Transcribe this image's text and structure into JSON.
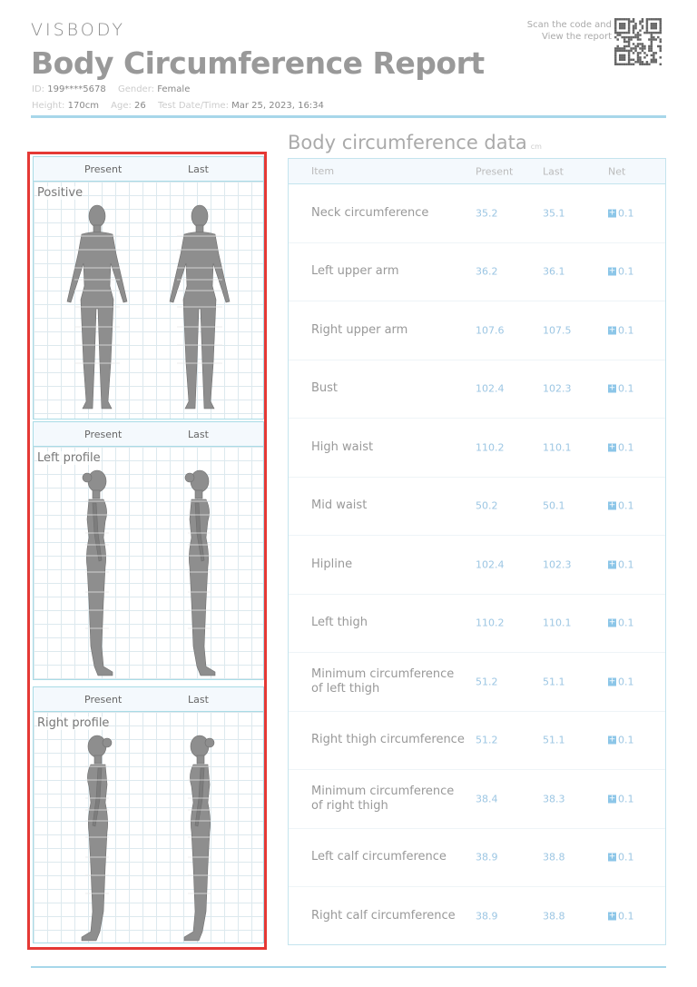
{
  "header": {
    "brand": "VISBODY",
    "title": "Body Circumference Report",
    "id_label": "ID:",
    "id": "199****5678",
    "gender_label": "Gender:",
    "gender": "Female",
    "height_label": "Height:",
    "height": "170cm",
    "age_label": "Age:",
    "age": "26",
    "date_label": "Test Date/Time:",
    "date": "Mar 25, 2023, 16:34",
    "scan_line1": "Scan the code and",
    "scan_line2": "View the report"
  },
  "views": [
    {
      "label": "Positive",
      "col1": "Present",
      "col2": "Last",
      "type": "front"
    },
    {
      "label": "Left profile",
      "col1": "Present",
      "col2": "Last",
      "type": "left"
    },
    {
      "label": "Right profile",
      "col1": "Present",
      "col2": "Last",
      "type": "right"
    }
  ],
  "table": {
    "title": "Body circumference data",
    "unit": "cm",
    "headers": [
      "Item",
      "Present",
      "Last",
      "Net"
    ],
    "rows": [
      {
        "item": "Neck circumference",
        "present": "35.2",
        "last": "35.1",
        "net": "0.1"
      },
      {
        "item": "Left upper arm",
        "present": "36.2",
        "last": "36.1",
        "net": "0.1"
      },
      {
        "item": "Right upper arm",
        "present": "107.6",
        "last": "107.5",
        "net": "0.1"
      },
      {
        "item": "Bust",
        "present": "102.4",
        "last": "102.3",
        "net": "0.1"
      },
      {
        "item": "High waist",
        "present": "110.2",
        "last": "110.1",
        "net": "0.1"
      },
      {
        "item": "Mid waist",
        "present": "50.2",
        "last": "50.1",
        "net": "0.1"
      },
      {
        "item": "Hipline",
        "present": "102.4",
        "last": "102.3",
        "net": "0.1"
      },
      {
        "item": "Left thigh",
        "present": "110.2",
        "last": "110.1",
        "net": "0.1"
      },
      {
        "item": "Minimum circumference of left thigh",
        "present": "51.2",
        "last": "51.1",
        "net": "0.1"
      },
      {
        "item": "Right thigh circumference",
        "present": "51.2",
        "last": "51.1",
        "net": "0.1"
      },
      {
        "item": "Minimum circumference of right thigh",
        "present": "38.4",
        "last": "38.3",
        "net": "0.1"
      },
      {
        "item": "Left calf circumference",
        "present": "38.9",
        "last": "38.8",
        "net": "0.1"
      },
      {
        "item": "Right calf circumference",
        "present": "38.9",
        "last": "38.8",
        "net": "0.1"
      }
    ]
  },
  "colors": {
    "accent": "#a7d7ea",
    "value": "#9cc6e3",
    "highlight_border": "#e53935"
  }
}
